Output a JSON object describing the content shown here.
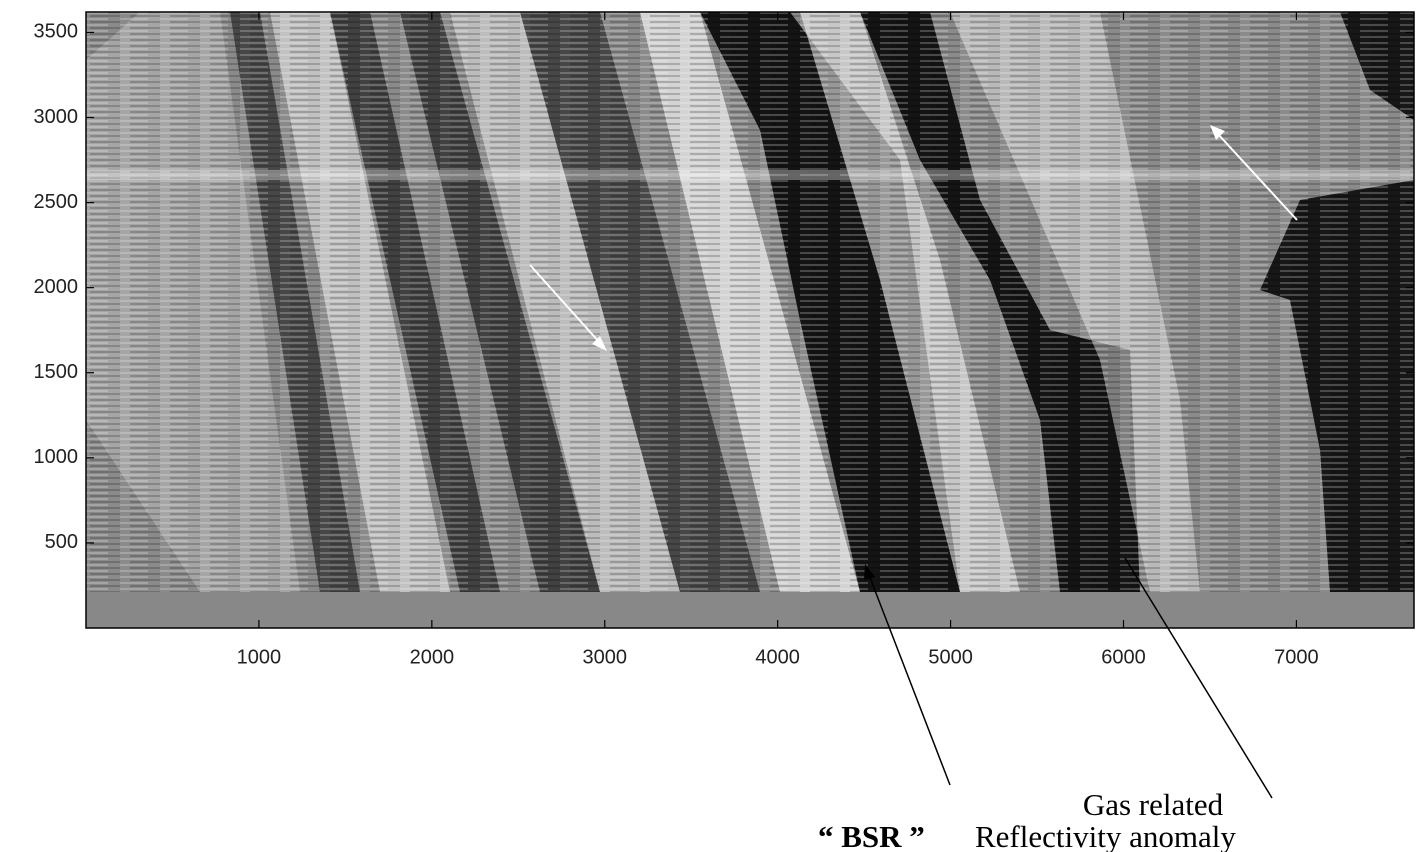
{
  "chart_data": {
    "type": "image",
    "xlim": [
      0,
      7680
    ],
    "ylim": [
      0,
      3620
    ],
    "xticks": [
      1000,
      2000,
      3000,
      4000,
      5000,
      6000,
      7000
    ],
    "yticks": [
      500,
      1000,
      1500,
      2000,
      2500,
      3000,
      3500
    ],
    "annotations": [
      "“ BSR ”",
      "Gas related",
      "Reflectivity anomaly"
    ]
  }
}
